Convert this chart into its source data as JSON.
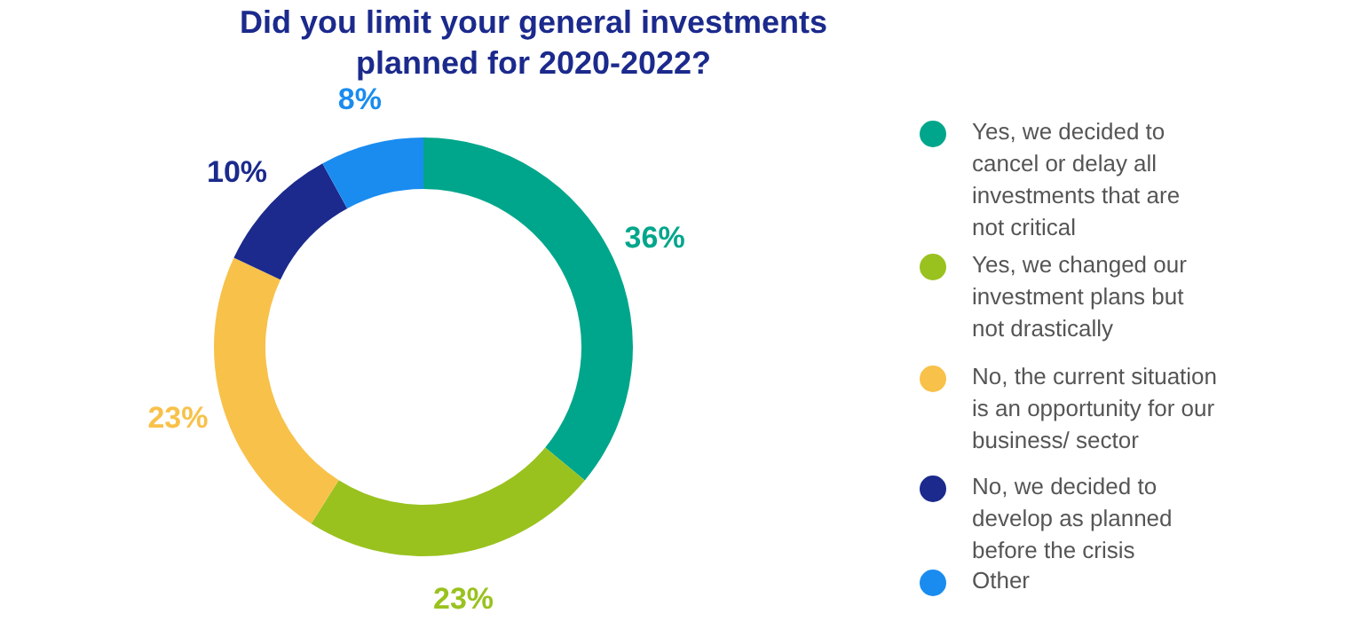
{
  "chart_data": {
    "type": "donut",
    "title": "Did you limit your general investments\nplanned for 2020-2022?",
    "categories": [
      "Yes, we decided to\ncancel or delay all\ninvestments that are\nnot critical",
      "Yes, we changed our\ninvestment plans but\nnot drastically",
      "No, the current situation\nis an opportunity for our\nbusiness/ sector",
      "No, we decided to\ndevelop as planned\nbefore the crisis",
      "Other"
    ],
    "values": [
      36,
      23,
      23,
      10,
      8
    ],
    "value_labels": [
      "36%",
      "23%",
      "23%",
      "10%",
      "8%"
    ],
    "colors": [
      "#00a68b",
      "#99c21e",
      "#f8c14a",
      "#1b2a8c",
      "#1a8cf0"
    ],
    "legend": "right"
  }
}
